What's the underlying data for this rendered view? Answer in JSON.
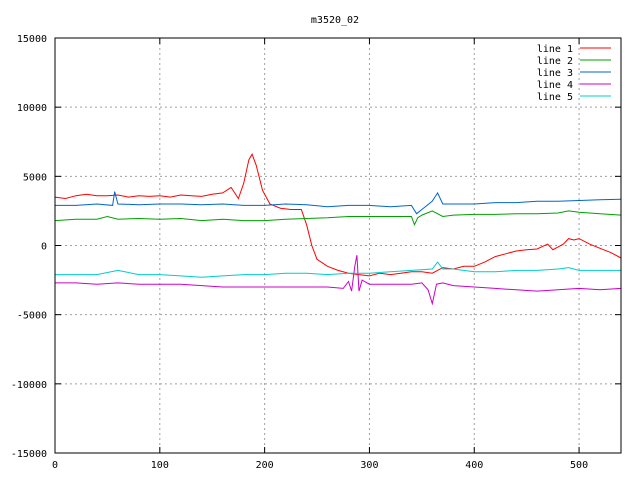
{
  "chart_data": {
    "type": "line",
    "title": "m3520_02",
    "xlabel": "",
    "ylabel": "",
    "xlim": [
      0,
      540
    ],
    "ylim": [
      -15000,
      15000
    ],
    "x_ticks": [
      "0",
      "100",
      "200",
      "300",
      "400",
      "500"
    ],
    "y_ticks": [
      "15000",
      "10000",
      "5000",
      "0",
      "-5000",
      "-10000",
      "-15000"
    ],
    "grid": true,
    "legend_position": "top-right",
    "series": [
      {
        "name": "line 1",
        "color": "#ff0000",
        "points": [
          [
            0,
            3500
          ],
          [
            10,
            3400
          ],
          [
            20,
            3600
          ],
          [
            30,
            3700
          ],
          [
            40,
            3600
          ],
          [
            50,
            3600
          ],
          [
            60,
            3650
          ],
          [
            70,
            3500
          ],
          [
            80,
            3600
          ],
          [
            90,
            3550
          ],
          [
            100,
            3600
          ],
          [
            110,
            3500
          ],
          [
            120,
            3650
          ],
          [
            130,
            3600
          ],
          [
            140,
            3550
          ],
          [
            150,
            3700
          ],
          [
            160,
            3800
          ],
          [
            168,
            4200
          ],
          [
            175,
            3400
          ],
          [
            180,
            4500
          ],
          [
            185,
            6200
          ],
          [
            188,
            6600
          ],
          [
            192,
            5800
          ],
          [
            198,
            4000
          ],
          [
            205,
            3000
          ],
          [
            215,
            2700
          ],
          [
            225,
            2600
          ],
          [
            235,
            2600
          ],
          [
            240,
            1500
          ],
          [
            245,
            0
          ],
          [
            250,
            -1000
          ],
          [
            260,
            -1500
          ],
          [
            270,
            -1800
          ],
          [
            280,
            -2000
          ],
          [
            290,
            -2100
          ],
          [
            300,
            -2200
          ],
          [
            310,
            -2000
          ],
          [
            320,
            -2100
          ],
          [
            330,
            -2000
          ],
          [
            340,
            -1900
          ],
          [
            350,
            -1900
          ],
          [
            360,
            -2000
          ],
          [
            370,
            -1600
          ],
          [
            380,
            -1700
          ],
          [
            390,
            -1500
          ],
          [
            400,
            -1500
          ],
          [
            410,
            -1200
          ],
          [
            420,
            -800
          ],
          [
            430,
            -600
          ],
          [
            440,
            -400
          ],
          [
            450,
            -300
          ],
          [
            460,
            -250
          ],
          [
            470,
            100
          ],
          [
            475,
            -300
          ],
          [
            480,
            -100
          ],
          [
            485,
            100
          ],
          [
            490,
            500
          ],
          [
            495,
            400
          ],
          [
            500,
            500
          ],
          [
            510,
            100
          ],
          [
            520,
            -200
          ],
          [
            530,
            -500
          ],
          [
            540,
            -900
          ]
        ]
      },
      {
        "name": "line 2",
        "color": "#00a000",
        "points": [
          [
            0,
            1800
          ],
          [
            20,
            1900
          ],
          [
            40,
            1900
          ],
          [
            50,
            2100
          ],
          [
            60,
            1900
          ],
          [
            80,
            1950
          ],
          [
            100,
            1900
          ],
          [
            120,
            1950
          ],
          [
            140,
            1800
          ],
          [
            160,
            1900
          ],
          [
            180,
            1800
          ],
          [
            200,
            1800
          ],
          [
            220,
            1900
          ],
          [
            240,
            1950
          ],
          [
            260,
            2000
          ],
          [
            280,
            2100
          ],
          [
            300,
            2100
          ],
          [
            320,
            2100
          ],
          [
            340,
            2100
          ],
          [
            343,
            1500
          ],
          [
            346,
            2000
          ],
          [
            350,
            2200
          ],
          [
            360,
            2500
          ],
          [
            370,
            2100
          ],
          [
            380,
            2200
          ],
          [
            400,
            2250
          ],
          [
            420,
            2250
          ],
          [
            440,
            2300
          ],
          [
            460,
            2300
          ],
          [
            480,
            2350
          ],
          [
            490,
            2500
          ],
          [
            500,
            2400
          ],
          [
            520,
            2300
          ],
          [
            540,
            2200
          ]
        ]
      },
      {
        "name": "line 3",
        "color": "#0066cc",
        "points": [
          [
            0,
            2900
          ],
          [
            20,
            2900
          ],
          [
            40,
            3000
          ],
          [
            55,
            2900
          ],
          [
            57,
            3900
          ],
          [
            60,
            3000
          ],
          [
            80,
            2950
          ],
          [
            100,
            3000
          ],
          [
            120,
            3000
          ],
          [
            140,
            2950
          ],
          [
            160,
            3000
          ],
          [
            180,
            2900
          ],
          [
            200,
            2900
          ],
          [
            220,
            3000
          ],
          [
            240,
            2950
          ],
          [
            260,
            2800
          ],
          [
            280,
            2900
          ],
          [
            300,
            2900
          ],
          [
            320,
            2800
          ],
          [
            340,
            2900
          ],
          [
            345,
            2300
          ],
          [
            350,
            2600
          ],
          [
            360,
            3200
          ],
          [
            365,
            3800
          ],
          [
            370,
            3000
          ],
          [
            380,
            3000
          ],
          [
            400,
            3000
          ],
          [
            420,
            3100
          ],
          [
            440,
            3100
          ],
          [
            460,
            3200
          ],
          [
            480,
            3200
          ],
          [
            500,
            3250
          ],
          [
            520,
            3300
          ],
          [
            540,
            3350
          ]
        ]
      },
      {
        "name": "line 4",
        "color": "#cc00cc",
        "points": [
          [
            0,
            -2700
          ],
          [
            20,
            -2700
          ],
          [
            40,
            -2800
          ],
          [
            60,
            -2700
          ],
          [
            80,
            -2800
          ],
          [
            100,
            -2800
          ],
          [
            120,
            -2800
          ],
          [
            140,
            -2900
          ],
          [
            160,
            -3000
          ],
          [
            180,
            -3000
          ],
          [
            200,
            -3000
          ],
          [
            220,
            -3000
          ],
          [
            240,
            -3000
          ],
          [
            260,
            -3000
          ],
          [
            275,
            -3100
          ],
          [
            280,
            -2600
          ],
          [
            283,
            -3300
          ],
          [
            286,
            -1500
          ],
          [
            288,
            -700
          ],
          [
            290,
            -3300
          ],
          [
            293,
            -2500
          ],
          [
            300,
            -2800
          ],
          [
            320,
            -2800
          ],
          [
            340,
            -2800
          ],
          [
            350,
            -2700
          ],
          [
            356,
            -3200
          ],
          [
            360,
            -4200
          ],
          [
            364,
            -2800
          ],
          [
            370,
            -2700
          ],
          [
            380,
            -2900
          ],
          [
            400,
            -3000
          ],
          [
            420,
            -3100
          ],
          [
            440,
            -3200
          ],
          [
            460,
            -3300
          ],
          [
            480,
            -3200
          ],
          [
            500,
            -3100
          ],
          [
            520,
            -3200
          ],
          [
            540,
            -3100
          ]
        ]
      },
      {
        "name": "line 5",
        "color": "#00cccc",
        "points": [
          [
            0,
            -2100
          ],
          [
            20,
            -2100
          ],
          [
            40,
            -2100
          ],
          [
            60,
            -1800
          ],
          [
            80,
            -2100
          ],
          [
            100,
            -2100
          ],
          [
            120,
            -2200
          ],
          [
            140,
            -2300
          ],
          [
            160,
            -2200
          ],
          [
            180,
            -2100
          ],
          [
            200,
            -2100
          ],
          [
            220,
            -2000
          ],
          [
            240,
            -2000
          ],
          [
            260,
            -2100
          ],
          [
            280,
            -2000
          ],
          [
            300,
            -2000
          ],
          [
            320,
            -1900
          ],
          [
            340,
            -1800
          ],
          [
            360,
            -1700
          ],
          [
            365,
            -1200
          ],
          [
            370,
            -1700
          ],
          [
            380,
            -1700
          ],
          [
            400,
            -1900
          ],
          [
            420,
            -1900
          ],
          [
            440,
            -1800
          ],
          [
            460,
            -1800
          ],
          [
            480,
            -1700
          ],
          [
            490,
            -1600
          ],
          [
            500,
            -1800
          ],
          [
            520,
            -1800
          ],
          [
            540,
            -1800
          ]
        ]
      }
    ]
  }
}
